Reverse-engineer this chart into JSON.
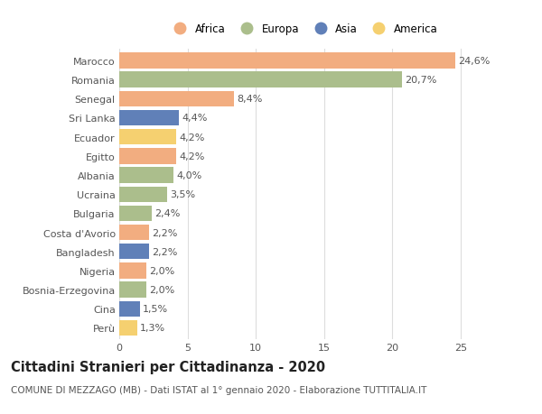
{
  "categories": [
    "Marocco",
    "Romania",
    "Senegal",
    "Sri Lanka",
    "Ecuador",
    "Egitto",
    "Albania",
    "Ucraina",
    "Bulgaria",
    "Costa d'Avorio",
    "Bangladesh",
    "Nigeria",
    "Bosnia-Erzegovina",
    "Cina",
    "Perù"
  ],
  "values": [
    24.6,
    20.7,
    8.4,
    4.4,
    4.2,
    4.2,
    4.0,
    3.5,
    2.4,
    2.2,
    2.2,
    2.0,
    2.0,
    1.5,
    1.3
  ],
  "continents": [
    "Africa",
    "Europa",
    "Africa",
    "Asia",
    "America",
    "Africa",
    "Europa",
    "Europa",
    "Europa",
    "Africa",
    "Asia",
    "Africa",
    "Europa",
    "Asia",
    "America"
  ],
  "continent_colors": {
    "Africa": "#F2AD80",
    "Europa": "#ABBE8C",
    "Asia": "#6080B8",
    "America": "#F5D070"
  },
  "legend_order": [
    "Africa",
    "Europa",
    "Asia",
    "America"
  ],
  "title": "Cittadini Stranieri per Cittadinanza - 2020",
  "subtitle": "COMUNE DI MEZZAGO (MB) - Dati ISTAT al 1° gennaio 2020 - Elaborazione TUTTITALIA.IT",
  "xlim": [
    0,
    27
  ],
  "xticks": [
    0,
    5,
    10,
    15,
    20,
    25
  ],
  "bar_height": 0.82,
  "background_color": "#ffffff",
  "grid_color": "#dddddd",
  "label_fontsize": 8.0,
  "tick_fontsize": 8.0,
  "title_fontsize": 10.5,
  "subtitle_fontsize": 7.5,
  "legend_fontsize": 8.5
}
